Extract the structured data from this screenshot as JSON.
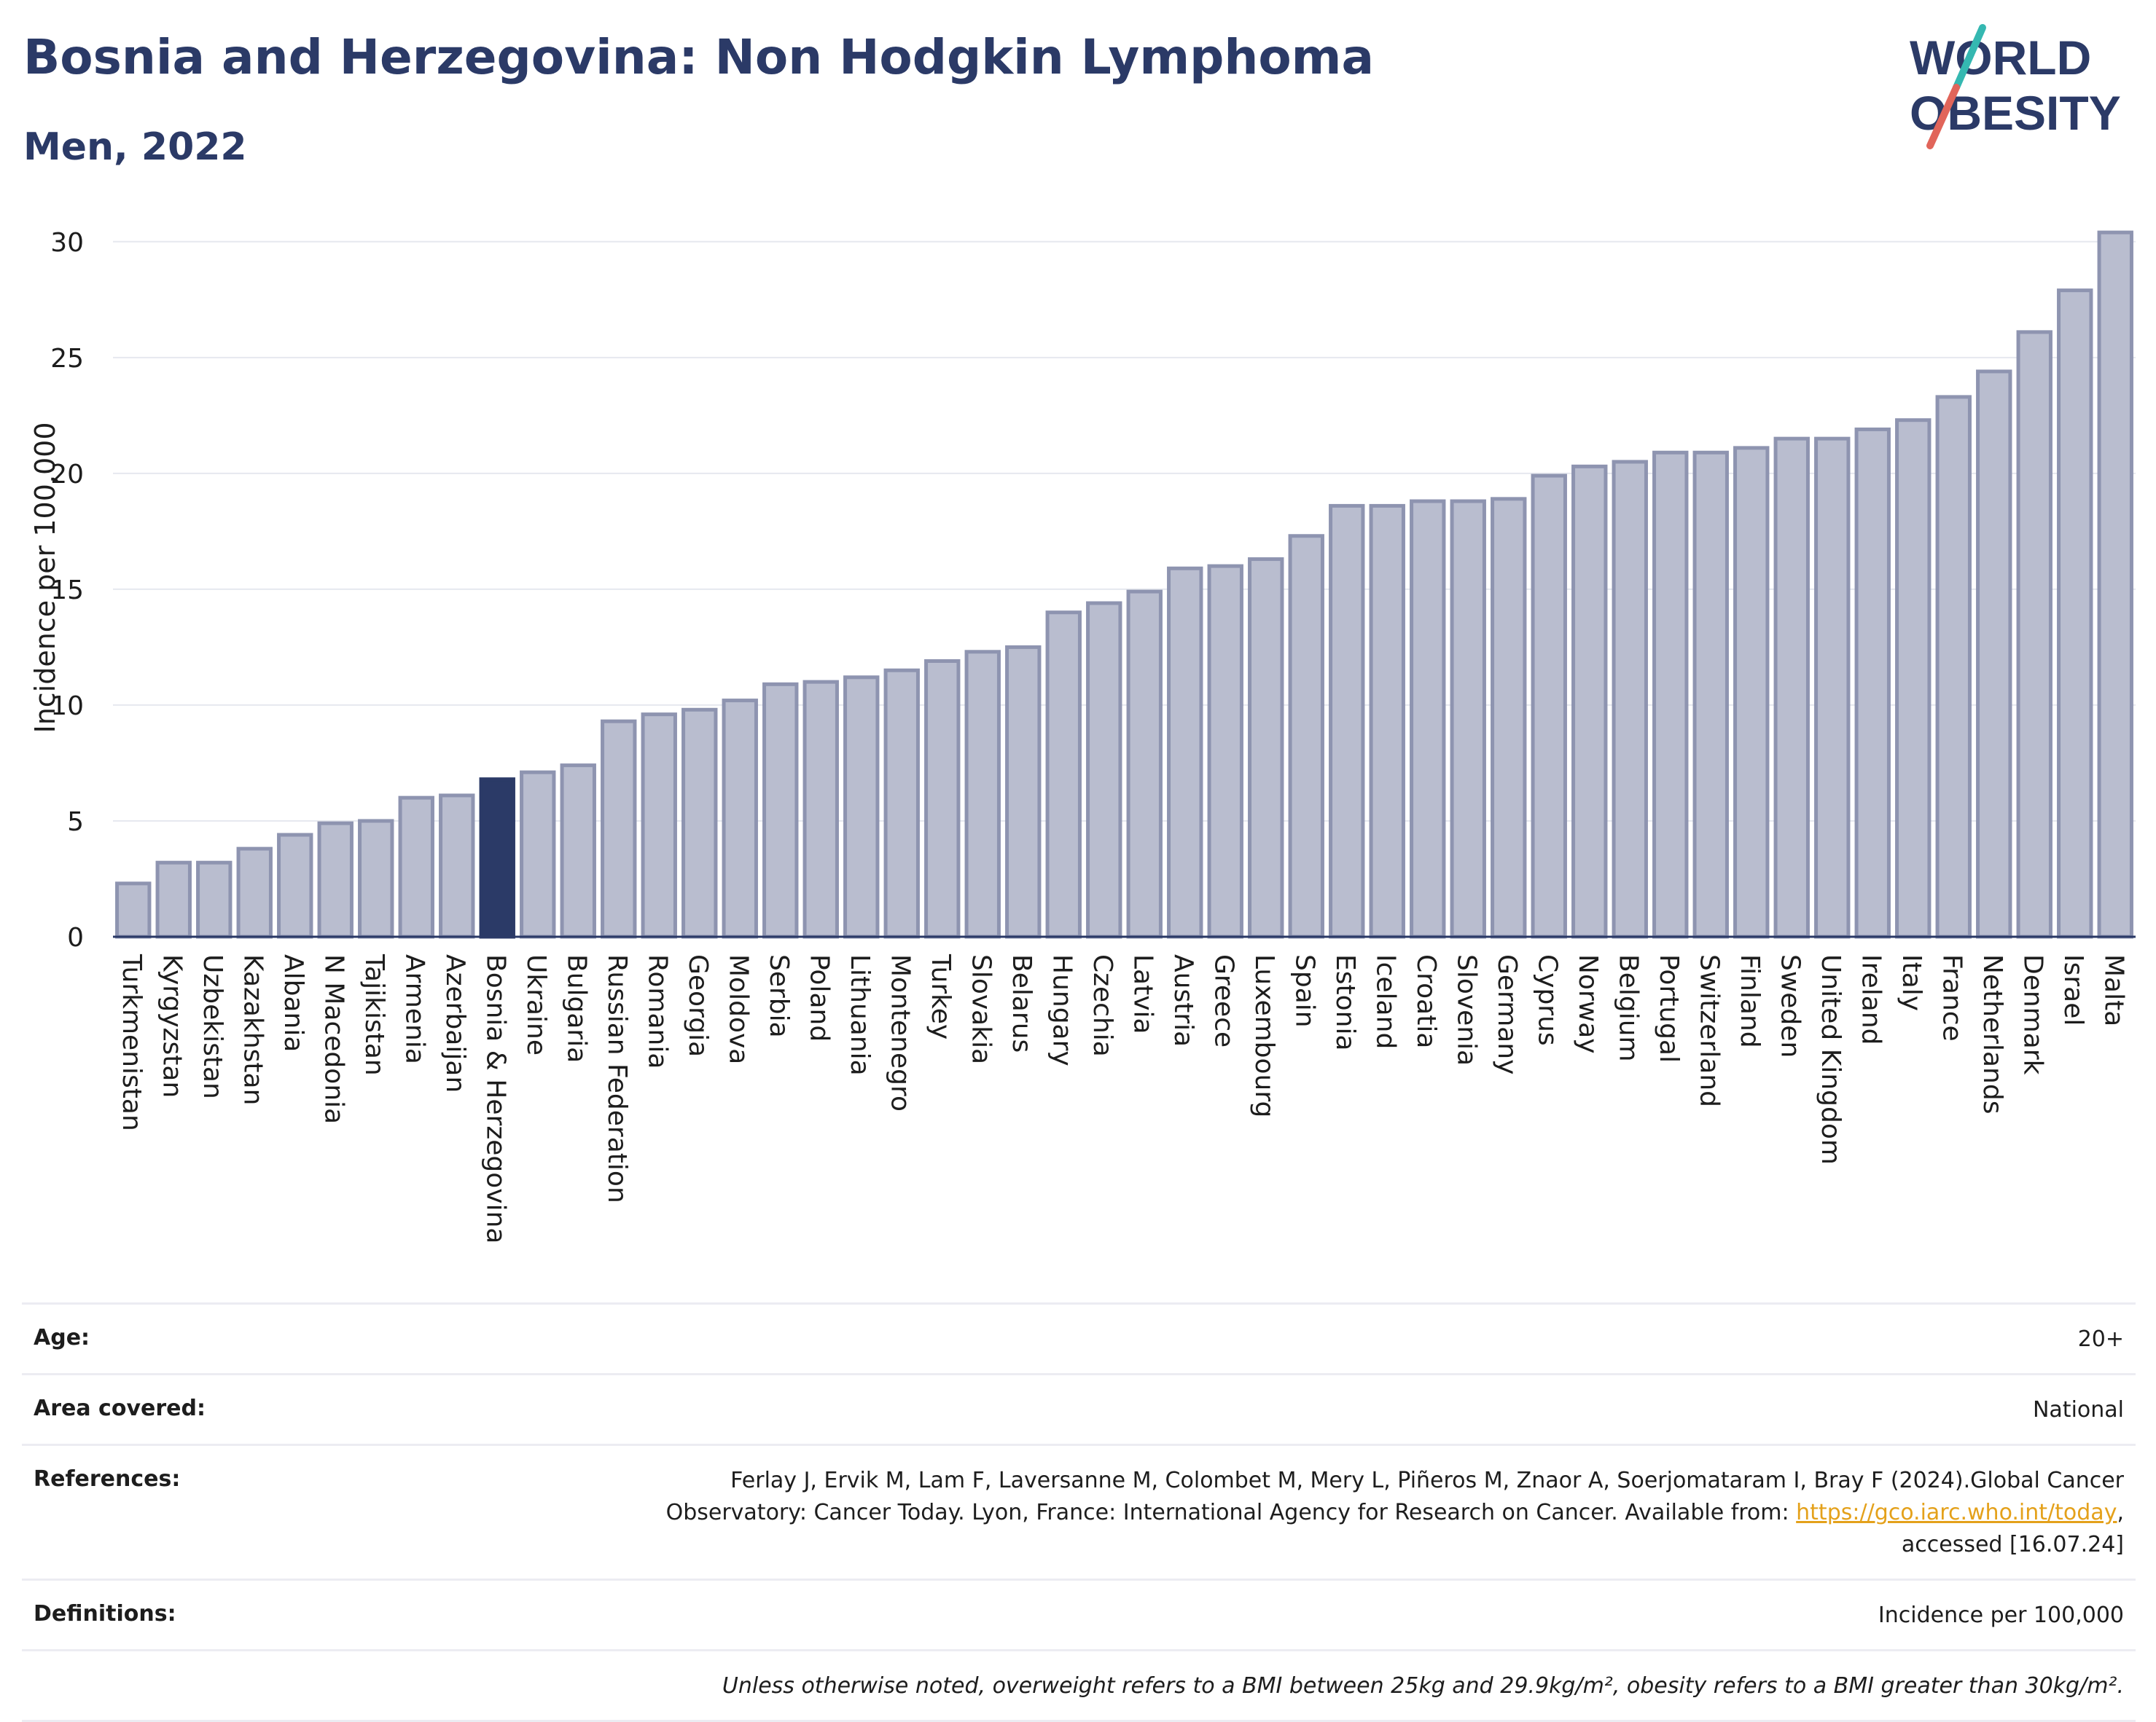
{
  "title": "Bosnia and Herzegovina: Non Hodgkin Lymphoma",
  "subtitle": "Men, 2022",
  "logo": {
    "line1": "WORLD",
    "line2": "OBESITY"
  },
  "colors": {
    "bar": "#b9bdcf",
    "bar_border": "#8e94b0",
    "highlight": "#2b3a67",
    "title": "#2b3a67",
    "grid": "#e6e8ef",
    "link": "#e4a11b"
  },
  "chart_data": {
    "type": "bar",
    "ylabel": "Incidence per 100,000",
    "ylim": [
      0,
      31
    ],
    "yticks": [
      0,
      5,
      10,
      15,
      20,
      25,
      30
    ],
    "highlight": "Bosnia & Herzegovina",
    "categories": [
      "Turkmenistan",
      "Kyrgyzstan",
      "Uzbekistan",
      "Kazakhstan",
      "Albania",
      "N Macedonia",
      "Tajikistan",
      "Armenia",
      "Azerbaijan",
      "Bosnia & Herzegovina",
      "Ukraine",
      "Bulgaria",
      "Russian Federation",
      "Romania",
      "Georgia",
      "Moldova",
      "Serbia",
      "Poland",
      "Lithuania",
      "Montenegro",
      "Turkey",
      "Slovakia",
      "Belarus",
      "Hungary",
      "Czechia",
      "Latvia",
      "Austria",
      "Greece",
      "Luxembourg",
      "Spain",
      "Estonia",
      "Iceland",
      "Croatia",
      "Slovenia",
      "Germany",
      "Cyprus",
      "Norway",
      "Belgium",
      "Portugal",
      "Switzerland",
      "Finland",
      "Sweden",
      "United Kingdom",
      "Ireland",
      "Italy",
      "France",
      "Netherlands",
      "Denmark",
      "Israel",
      "Malta"
    ],
    "values": [
      2.3,
      3.2,
      3.2,
      3.8,
      4.4,
      4.9,
      5.0,
      6.0,
      6.1,
      6.8,
      7.1,
      7.4,
      9.3,
      9.6,
      9.8,
      10.2,
      10.9,
      11.0,
      11.2,
      11.5,
      11.9,
      12.3,
      12.5,
      14.0,
      14.4,
      14.9,
      15.9,
      16.0,
      16.3,
      17.3,
      18.6,
      18.6,
      18.8,
      18.8,
      18.9,
      19.9,
      20.3,
      20.5,
      20.9,
      20.9,
      21.1,
      21.5,
      21.5,
      21.9,
      22.3,
      23.3,
      24.4,
      26.1,
      27.9,
      30.4
    ]
  },
  "info": {
    "age": {
      "label": "Age:",
      "value": "20+"
    },
    "area": {
      "label": "Area covered:",
      "value": "National"
    },
    "references": {
      "label": "References:",
      "text1": "Ferlay J, Ervik M, Lam F, Laversanne M, Colombet M, Mery L, Piñeros M, Znaor A, Soerjomataram I, Bray F (2024).Global Cancer",
      "text2": "Observatory: Cancer Today. Lyon, France: International Agency for Research on Cancer. Available from: ",
      "link": "https://gco.iarc.who.int/today",
      "text3": ",",
      "text4": "accessed [16.07.24]"
    },
    "definitions": {
      "label": "Definitions:",
      "value": "Incidence per 100,000"
    },
    "note": "Unless otherwise noted, overweight refers to a BMI between 25kg and 29.9kg/m², obesity refers to a BMI greater than 30kg/m²."
  }
}
